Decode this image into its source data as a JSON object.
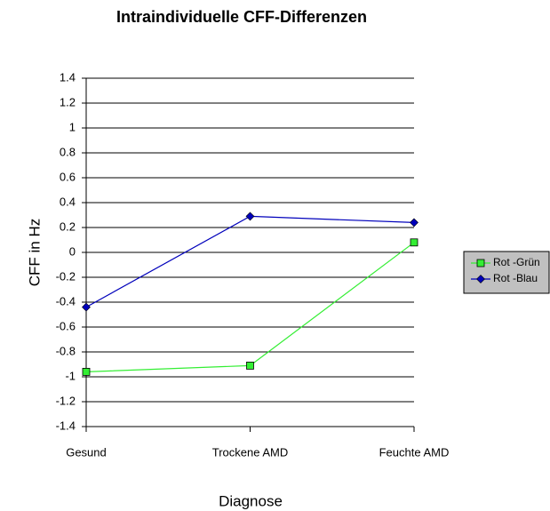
{
  "chart_data": {
    "type": "line",
    "title": "Intraindividuelle CFF-Differenzen",
    "x_label": "Diagnose",
    "y_label": "CFF in Hz",
    "categories": [
      "Gesund",
      "Trockene AMD",
      "Feuchte AMD"
    ],
    "series": [
      {
        "name": "Rot -Grün",
        "color": "#33ee33",
        "marker": "square",
        "values": [
          -0.96,
          -0.91,
          0.08
        ]
      },
      {
        "name": "Rot -Blau",
        "color": "#0000bb",
        "marker": "diamond",
        "values": [
          -0.44,
          0.29,
          0.24
        ]
      }
    ],
    "ylim": [
      -1.4,
      1.4
    ],
    "yticks": [
      -1.4,
      -1.2,
      -1,
      -0.8,
      -0.6,
      -0.4,
      -0.2,
      0,
      0.2,
      0.4,
      0.6,
      0.8,
      1,
      1.2,
      1.4
    ],
    "grid": true
  }
}
